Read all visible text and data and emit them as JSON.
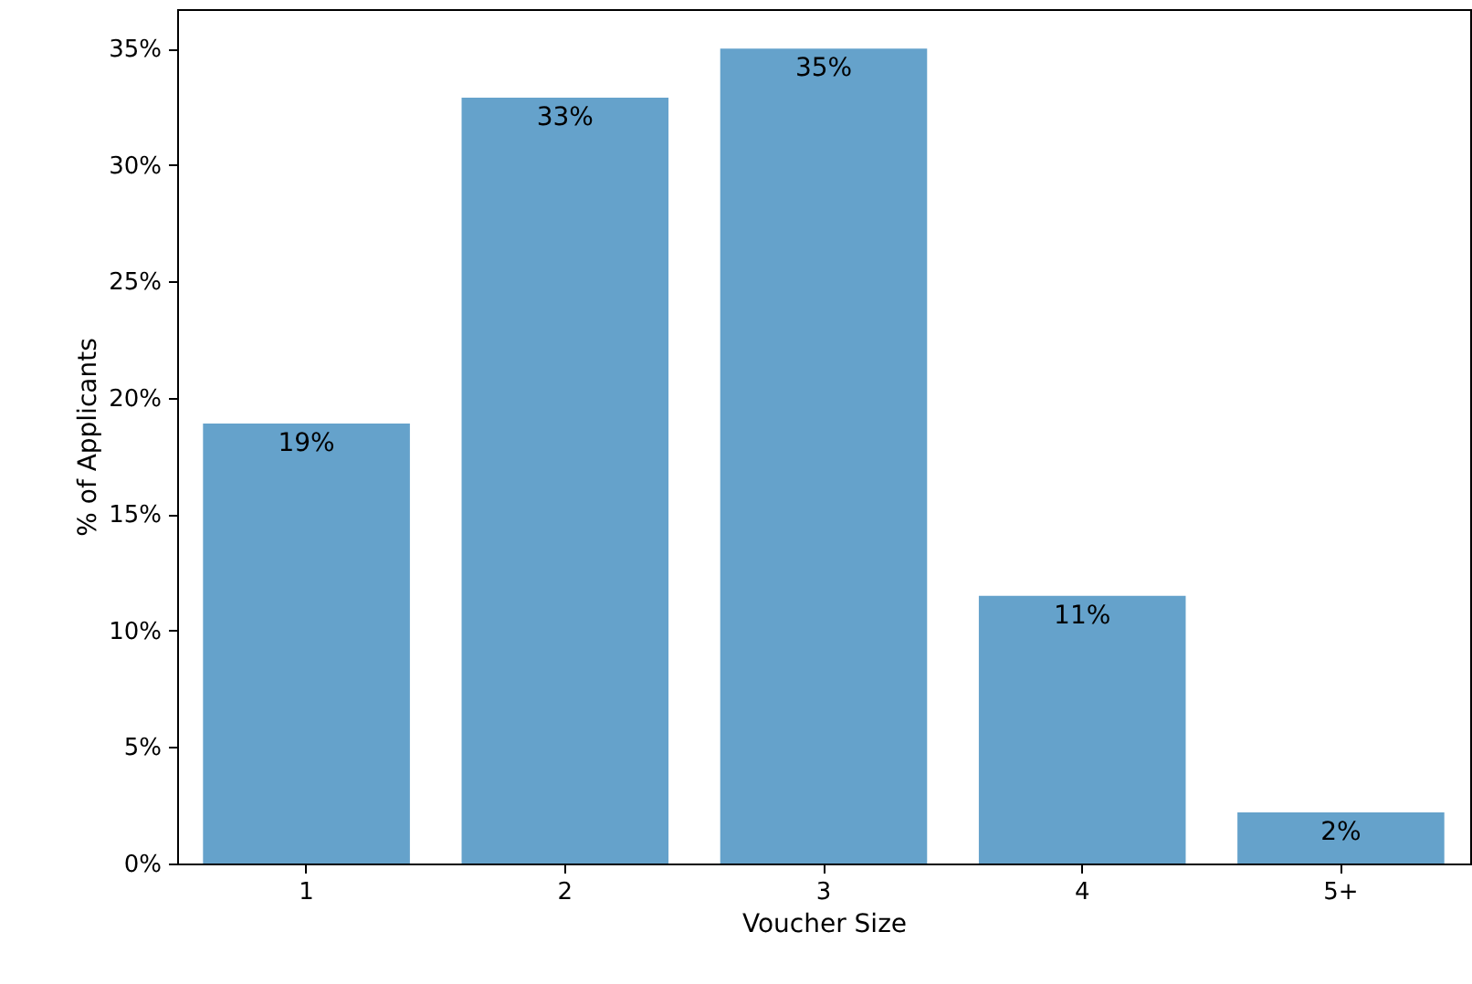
{
  "chart_data": {
    "type": "bar",
    "xlabel": "Voucher Size",
    "ylabel": "% of Applicants",
    "categories": [
      "1",
      "2",
      "3",
      "4",
      "5+"
    ],
    "values": [
      18.9,
      32.9,
      35,
      11.5,
      2.2
    ],
    "value_labels": [
      "19%",
      "33%",
      "35%",
      "11%",
      "2%"
    ],
    "color": "#65a2cb",
    "ylim": [
      0,
      36.7
    ],
    "yticks": [
      {
        "value": 0,
        "label": "0%"
      },
      {
        "value": 5,
        "label": "5%"
      },
      {
        "value": 10,
        "label": "10%"
      },
      {
        "value": 15,
        "label": "15%"
      },
      {
        "value": 20,
        "label": "20%"
      },
      {
        "value": 25,
        "label": "25%"
      },
      {
        "value": 30,
        "label": "30%"
      },
      {
        "value": 35,
        "label": "35%"
      }
    ],
    "grid": false
  }
}
